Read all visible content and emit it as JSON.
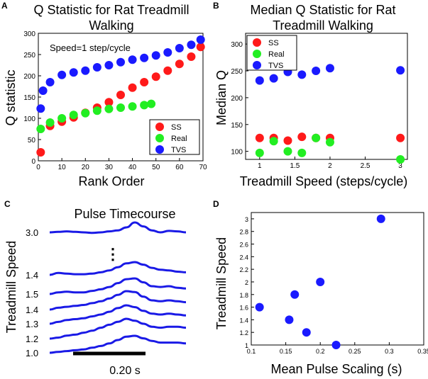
{
  "colors": {
    "SS": "#ff1a1a",
    "Real": "#22ee22",
    "TVS": "#1a1aff",
    "trace": "#1a1ae6",
    "axis": "#000000",
    "legend_border": "#000000"
  },
  "panel_letters": {
    "A": "A",
    "B": "B",
    "C": "C",
    "D": "D"
  },
  "chart_data": [
    {
      "panel": "A",
      "type": "scatter",
      "title": "Q Statistic for Rat Treadmill Walking",
      "title_lines": [
        "Q Statistic for Rat Treadmill",
        "Walking"
      ],
      "xlabel": "Rank Order",
      "ylabel": "Q statistic",
      "xlim": [
        0,
        70
      ],
      "ylim": [
        0,
        300
      ],
      "xticks": [
        0,
        10,
        20,
        30,
        40,
        50,
        60,
        70
      ],
      "yticks": [
        0,
        50,
        100,
        150,
        200,
        250,
        300
      ],
      "annotation": "Speed=1 step/cycle",
      "legend": {
        "location": "bottom-right",
        "entries": [
          "SS",
          "Real",
          "TVS"
        ]
      },
      "series": [
        {
          "name": "SS",
          "x": [
            1,
            5,
            10,
            15,
            20,
            25,
            30,
            35,
            40,
            45,
            50,
            55,
            60,
            65,
            69
          ],
          "y": [
            20,
            82,
            92,
            102,
            113,
            125,
            138,
            155,
            172,
            185,
            198,
            212,
            228,
            245,
            268
          ]
        },
        {
          "name": "Real",
          "x": [
            1,
            5,
            10,
            15,
            20,
            25,
            30,
            35,
            40,
            45,
            48
          ],
          "y": [
            75,
            90,
            100,
            108,
            112,
            118,
            122,
            125,
            128,
            131,
            134
          ]
        },
        {
          "name": "TVS",
          "x": [
            1,
            2,
            5,
            10,
            15,
            20,
            25,
            30,
            35,
            40,
            45,
            50,
            55,
            60,
            65,
            69
          ],
          "y": [
            123,
            165,
            185,
            202,
            208,
            212,
            220,
            225,
            232,
            238,
            242,
            248,
            255,
            265,
            273,
            285
          ]
        }
      ]
    },
    {
      "panel": "B",
      "type": "scatter",
      "title": "Median Q Statistic for Rat Treadmill Walking",
      "title_lines": [
        "Median Q Statistic for Rat",
        "Treadmill Walking"
      ],
      "xlabel": "Treadmill Speed (steps/cycle)",
      "ylabel": "Median Q",
      "xlim": [
        0.8,
        3.1
      ],
      "ylim": [
        85,
        320
      ],
      "xticks": [
        1,
        1.5,
        2,
        2.5,
        3
      ],
      "yticks": [
        100,
        150,
        200,
        250,
        300
      ],
      "legend": {
        "location": "top-left",
        "entries": [
          "SS",
          "Real",
          "TVS"
        ]
      },
      "series": [
        {
          "name": "SS",
          "x": [
            1,
            1.2,
            1.4,
            1.6,
            1.8,
            2,
            3
          ],
          "y": [
            125,
            125,
            120,
            127,
            125,
            125,
            125
          ]
        },
        {
          "name": "Real",
          "x": [
            1,
            1.2,
            1.4,
            1.6,
            1.8,
            2,
            3
          ],
          "y": [
            97,
            119,
            100,
            97,
            125,
            117,
            85
          ]
        },
        {
          "name": "TVS",
          "x": [
            1,
            1.2,
            1.4,
            1.6,
            1.8,
            2,
            3
          ],
          "y": [
            232,
            236,
            248,
            243,
            250,
            255,
            251
          ]
        }
      ]
    },
    {
      "panel": "C",
      "type": "line",
      "title": "Pulse Timecourse",
      "ylabel": "Treadmill Speed",
      "scale_bar_label": "0.20 s",
      "ellipsis": "⋮",
      "trace_labels": [
        "3.0",
        "1.4",
        "1.5",
        "1.4",
        "1.3",
        "1.2",
        "1.0"
      ],
      "series": [
        {
          "name": "3.0",
          "y": [
            0,
            0.05,
            0.1,
            0.05,
            0.0,
            -0.05,
            0.0,
            0.1,
            0.2,
            0.5,
            1.0,
            0.6,
            0.2,
            0.0,
            0.15,
            0.1,
            0.0
          ]
        },
        {
          "name": "1.4a",
          "y": [
            0,
            0.15,
            0.1,
            0.05,
            0.05,
            0.1,
            0.2,
            0.35,
            0.6,
            0.9,
            1.0,
            0.8,
            0.55,
            0.4,
            0.35,
            0.25,
            0.2
          ]
        },
        {
          "name": "1.5",
          "y": [
            0,
            0.1,
            0.15,
            0.1,
            0.1,
            0.2,
            0.3,
            0.45,
            0.7,
            0.95,
            1.0,
            0.75,
            0.5,
            0.45,
            0.5,
            0.4,
            0.35
          ]
        },
        {
          "name": "1.4b",
          "y": [
            0,
            0.1,
            0.15,
            0.2,
            0.25,
            0.35,
            0.45,
            0.6,
            0.8,
            1.0,
            0.95,
            0.7,
            0.5,
            0.45,
            0.5,
            0.45,
            0.4
          ]
        },
        {
          "name": "1.3",
          "y": [
            0,
            0.1,
            0.2,
            0.25,
            0.3,
            0.4,
            0.5,
            0.65,
            0.85,
            1.0,
            0.9,
            0.7,
            0.55,
            0.5,
            0.55,
            0.5,
            0.45
          ]
        },
        {
          "name": "1.2",
          "y": [
            0,
            0.05,
            0.15,
            0.2,
            0.3,
            0.4,
            0.55,
            0.7,
            0.85,
            1.0,
            0.9,
            0.75,
            0.6,
            0.55,
            0.6,
            0.6,
            0.55
          ]
        },
        {
          "name": "1.0",
          "y": [
            0,
            0.05,
            0.1,
            0.15,
            0.2,
            0.3,
            0.4,
            0.55,
            0.75,
            0.95,
            1.0,
            0.85,
            0.7,
            0.6,
            0.6,
            0.6,
            0.55
          ]
        }
      ]
    },
    {
      "panel": "D",
      "type": "scatter",
      "xlabel": "Mean Pulse Scaling (s)",
      "ylabel": "Treadmill Speed",
      "xlim": [
        0.1,
        0.35
      ],
      "ylim": [
        1,
        3.1
      ],
      "xticks": [
        0.1,
        0.15,
        0.2,
        0.25,
        0.3,
        0.35
      ],
      "yticks": [
        1,
        1.2,
        1.4,
        1.6,
        1.8,
        2,
        2.2,
        2.4,
        2.6,
        2.8,
        3
      ],
      "series": [
        {
          "name": "points",
          "x": [
            0.112,
            0.155,
            0.163,
            0.18,
            0.2,
            0.223,
            0.288
          ],
          "y": [
            1.6,
            1.4,
            1.8,
            1.2,
            2.0,
            1.0,
            3.0
          ]
        }
      ]
    }
  ]
}
